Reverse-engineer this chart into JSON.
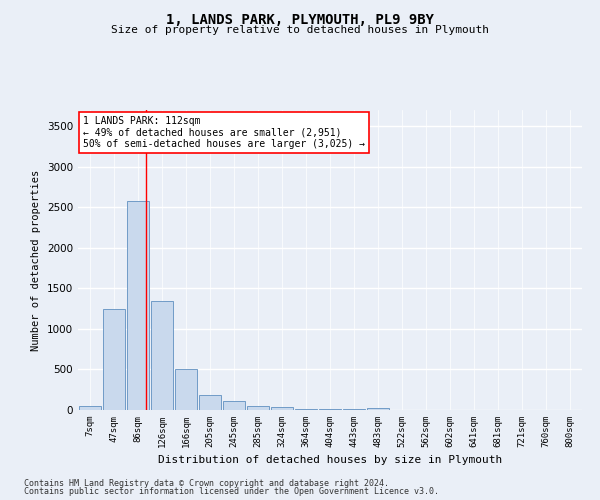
{
  "title": "1, LANDS PARK, PLYMOUTH, PL9 9BY",
  "subtitle": "Size of property relative to detached houses in Plymouth",
  "xlabel": "Distribution of detached houses by size in Plymouth",
  "ylabel": "Number of detached properties",
  "bin_labels": [
    "7sqm",
    "47sqm",
    "86sqm",
    "126sqm",
    "166sqm",
    "205sqm",
    "245sqm",
    "285sqm",
    "324sqm",
    "364sqm",
    "404sqm",
    "443sqm",
    "483sqm",
    "522sqm",
    "562sqm",
    "602sqm",
    "641sqm",
    "681sqm",
    "721sqm",
    "760sqm",
    "800sqm"
  ],
  "bin_values": [
    50,
    1250,
    2580,
    1340,
    500,
    185,
    115,
    50,
    35,
    15,
    10,
    10,
    28,
    0,
    0,
    0,
    0,
    0,
    0,
    0,
    0
  ],
  "bar_color": "#c9d9ed",
  "bar_edge_color": "#6090c0",
  "red_line_x": 2.35,
  "annotation_title": "1 LANDS PARK: 112sqm",
  "annotation_line1": "← 49% of detached houses are smaller (2,951)",
  "annotation_line2": "50% of semi-detached houses are larger (3,025) →",
  "ylim": [
    0,
    3700
  ],
  "yticks": [
    0,
    500,
    1000,
    1500,
    2000,
    2500,
    3000,
    3500
  ],
  "bg_color": "#eaeff7",
  "plot_bg_color": "#eaeff7",
  "grid_color": "#ffffff",
  "footer1": "Contains HM Land Registry data © Crown copyright and database right 2024.",
  "footer2": "Contains public sector information licensed under the Open Government Licence v3.0."
}
